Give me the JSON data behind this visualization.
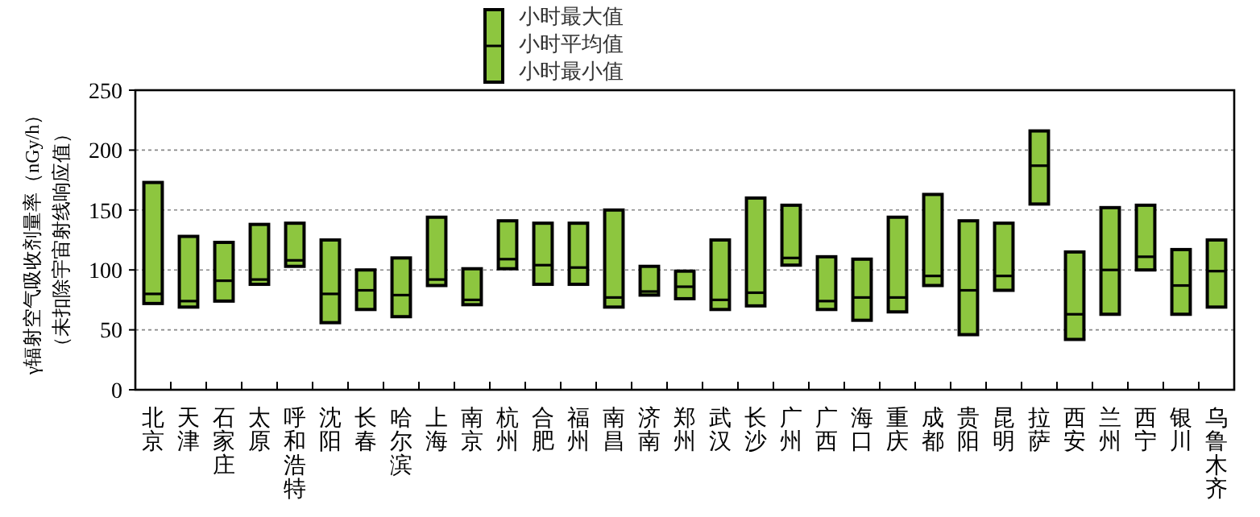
{
  "chart_data": {
    "type": "box",
    "ylabel": "γ辐射空气吸收剂量率（nGy/h）（未扣除宇宙射线响应值）",
    "categories": [
      "北京",
      "天津",
      "石家庄",
      "太原",
      "呼和浩特",
      "沈阳",
      "长春",
      "哈尔滨",
      "上海",
      "南京",
      "杭州",
      "合肥",
      "福州",
      "南昌",
      "济南",
      "郑州",
      "武汉",
      "长沙",
      "广州",
      "广西",
      "海口",
      "重庆",
      "成都",
      "贵阳",
      "昆明",
      "拉萨",
      "西安",
      "兰州",
      "西宁",
      "银川",
      "乌鲁木齐"
    ],
    "color": "#8dc63f",
    "boxes": [
      {
        "low": 72,
        "q1": 72,
        "median": 80,
        "q3": 173,
        "high": 173
      },
      {
        "low": 69,
        "q1": 69,
        "median": 74,
        "q3": 128,
        "high": 128
      },
      {
        "low": 74,
        "q1": 74,
        "median": 91,
        "q3": 123,
        "high": 123
      },
      {
        "low": 88,
        "q1": 88,
        "median": 92,
        "q3": 138,
        "high": 138
      },
      {
        "low": 103,
        "q1": 103,
        "median": 108,
        "q3": 139,
        "high": 139
      },
      {
        "low": 56,
        "q1": 56,
        "median": 80,
        "q3": 125,
        "high": 125
      },
      {
        "low": 67,
        "q1": 67,
        "median": 83,
        "q3": 100,
        "high": 100
      },
      {
        "low": 61,
        "q1": 61,
        "median": 79,
        "q3": 110,
        "high": 110
      },
      {
        "low": 87,
        "q1": 87,
        "median": 92,
        "q3": 144,
        "high": 144
      },
      {
        "low": 71,
        "q1": 71,
        "median": 75,
        "q3": 101,
        "high": 101
      },
      {
        "low": 101,
        "q1": 101,
        "median": 109,
        "q3": 141,
        "high": 141
      },
      {
        "low": 88,
        "q1": 88,
        "median": 104,
        "q3": 139,
        "high": 139
      },
      {
        "low": 88,
        "q1": 88,
        "median": 102,
        "q3": 139,
        "high": 139
      },
      {
        "low": 69,
        "q1": 69,
        "median": 77,
        "q3": 150,
        "high": 150
      },
      {
        "low": 79,
        "q1": 79,
        "median": 82,
        "q3": 103,
        "high": 103
      },
      {
        "low": 76,
        "q1": 76,
        "median": 86,
        "q3": 99,
        "high": 99
      },
      {
        "low": 67,
        "q1": 67,
        "median": 75,
        "q3": 125,
        "high": 125
      },
      {
        "low": 70,
        "q1": 70,
        "median": 81,
        "q3": 160,
        "high": 160
      },
      {
        "low": 104,
        "q1": 104,
        "median": 110,
        "q3": 154,
        "high": 154
      },
      {
        "low": 67,
        "q1": 67,
        "median": 74,
        "q3": 111,
        "high": 111
      },
      {
        "low": 58,
        "q1": 58,
        "median": 77,
        "q3": 109,
        "high": 109
      },
      {
        "low": 65,
        "q1": 65,
        "median": 77,
        "q3": 144,
        "high": 144
      },
      {
        "low": 87,
        "q1": 87,
        "median": 95,
        "q3": 163,
        "high": 163
      },
      {
        "low": 46,
        "q1": 46,
        "median": 83,
        "q3": 141,
        "high": 141
      },
      {
        "low": 83,
        "q1": 83,
        "median": 95,
        "q3": 139,
        "high": 139
      },
      {
        "low": 155,
        "q1": 155,
        "median": 187,
        "q3": 216,
        "high": 216
      },
      {
        "low": 42,
        "q1": 42,
        "median": 63,
        "q3": 115,
        "high": 115
      },
      {
        "low": 63,
        "q1": 63,
        "median": 100,
        "q3": 152,
        "high": 152
      },
      {
        "low": 100,
        "q1": 100,
        "median": 111,
        "q3": 154,
        "high": 154
      },
      {
        "low": 63,
        "q1": 63,
        "median": 87,
        "q3": 117,
        "high": 117
      },
      {
        "low": 69,
        "q1": 69,
        "median": 99,
        "q3": 125,
        "high": 125
      }
    ],
    "ylim": [
      0,
      250
    ],
    "yticks": [
      0,
      50,
      100,
      150,
      200,
      250
    ],
    "grid": "y",
    "annotations": [
      "小时最大值",
      "小时平均值",
      "小时最小值"
    ]
  }
}
